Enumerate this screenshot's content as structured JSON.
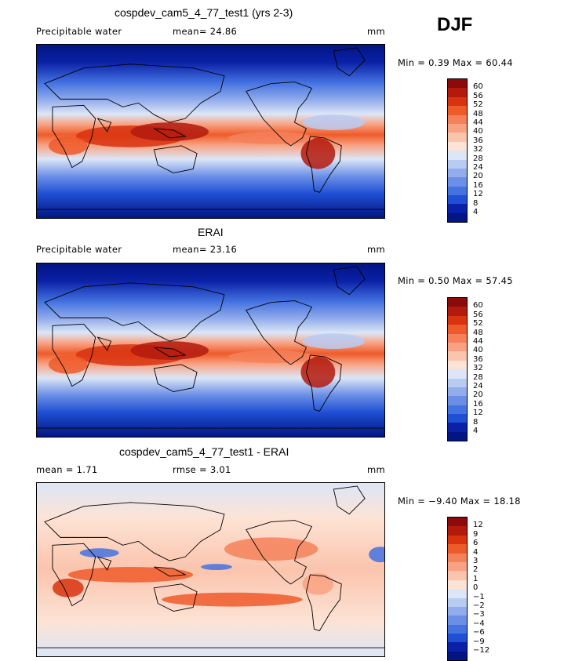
{
  "season": "DJF",
  "panels": [
    {
      "title": "cospdev_cam5_4_77_test1 (yrs 2-3)",
      "left_label": "Precipitable water",
      "mid_label": "mean=  24.86",
      "units": "mm",
      "minmax": "Min =    0.39 Max =   60.44",
      "kind": "field",
      "levels": [
        "60",
        "56",
        "52",
        "48",
        "44",
        "40",
        "36",
        "32",
        "28",
        "24",
        "20",
        "16",
        "12",
        "8",
        "4"
      ],
      "colors": [
        "#8b0a0a",
        "#b31a0e",
        "#d8330f",
        "#ee5b2a",
        "#f5815a",
        "#f9a283",
        "#fbc4ad",
        "#fde3d5",
        "#dce6f7",
        "#b8cbf2",
        "#93adec",
        "#6b8fe7",
        "#4472e1",
        "#1f4fd4",
        "#0a20a6",
        "#021582"
      ]
    },
    {
      "title": "ERAI",
      "left_label": "Precipitable water",
      "mid_label": "mean=  23.16",
      "units": "mm",
      "minmax": "Min =    0.50 Max =   57.45",
      "kind": "field",
      "levels": [
        "60",
        "56",
        "52",
        "48",
        "44",
        "40",
        "36",
        "32",
        "28",
        "24",
        "20",
        "16",
        "12",
        "8",
        "4"
      ],
      "colors": [
        "#8b0a0a",
        "#b31a0e",
        "#d8330f",
        "#ee5b2a",
        "#f5815a",
        "#f9a283",
        "#fbc4ad",
        "#fde3d5",
        "#dce6f7",
        "#b8cbf2",
        "#93adec",
        "#6b8fe7",
        "#4472e1",
        "#1f4fd4",
        "#0a20a6",
        "#021582"
      ]
    },
    {
      "title": "cospdev_cam5_4_77_test1 - ERAI",
      "left_label": "mean =    1.71",
      "mid_label": "rmse =    3.01",
      "units": "mm",
      "minmax": "Min =  −9.40 Max =   18.18",
      "kind": "diff",
      "levels": [
        "12",
        "9",
        "6",
        "4",
        "3",
        "2",
        "1",
        "0",
        "−1",
        "−2",
        "−3",
        "−4",
        "−6",
        "−9",
        "−12"
      ],
      "colors": [
        "#8b0a0a",
        "#b31a0e",
        "#d8330f",
        "#ee5b2a",
        "#f5815a",
        "#f9a283",
        "#fbc4ad",
        "#fde3d5",
        "#dce6f7",
        "#b8cbf2",
        "#93adec",
        "#6b8fe7",
        "#4472e1",
        "#1f4fd4",
        "#0a20a6",
        "#021582"
      ]
    }
  ],
  "chart_data": [
    {
      "type": "heatmap",
      "title": "cospdev_cam5_4_77_test1 (yrs 2-3)",
      "variable": "Precipitable water",
      "units": "mm",
      "mean": 24.86,
      "min": 0.39,
      "max": 60.44,
      "season": "DJF",
      "contour_levels": [
        4,
        8,
        12,
        16,
        20,
        24,
        28,
        32,
        36,
        40,
        44,
        48,
        52,
        56,
        60
      ]
    },
    {
      "type": "heatmap",
      "title": "ERAI",
      "variable": "Precipitable water",
      "units": "mm",
      "mean": 23.16,
      "min": 0.5,
      "max": 57.45,
      "season": "DJF",
      "contour_levels": [
        4,
        8,
        12,
        16,
        20,
        24,
        28,
        32,
        36,
        40,
        44,
        48,
        52,
        56,
        60
      ]
    },
    {
      "type": "heatmap",
      "title": "cospdev_cam5_4_77_test1 - ERAI",
      "units": "mm",
      "mean": 1.71,
      "rmse": 3.01,
      "min": -9.4,
      "max": 18.18,
      "season": "DJF",
      "contour_levels": [
        -12,
        -9,
        -6,
        -4,
        -3,
        -2,
        -1,
        0,
        1,
        2,
        3,
        4,
        6,
        9,
        12
      ]
    }
  ]
}
